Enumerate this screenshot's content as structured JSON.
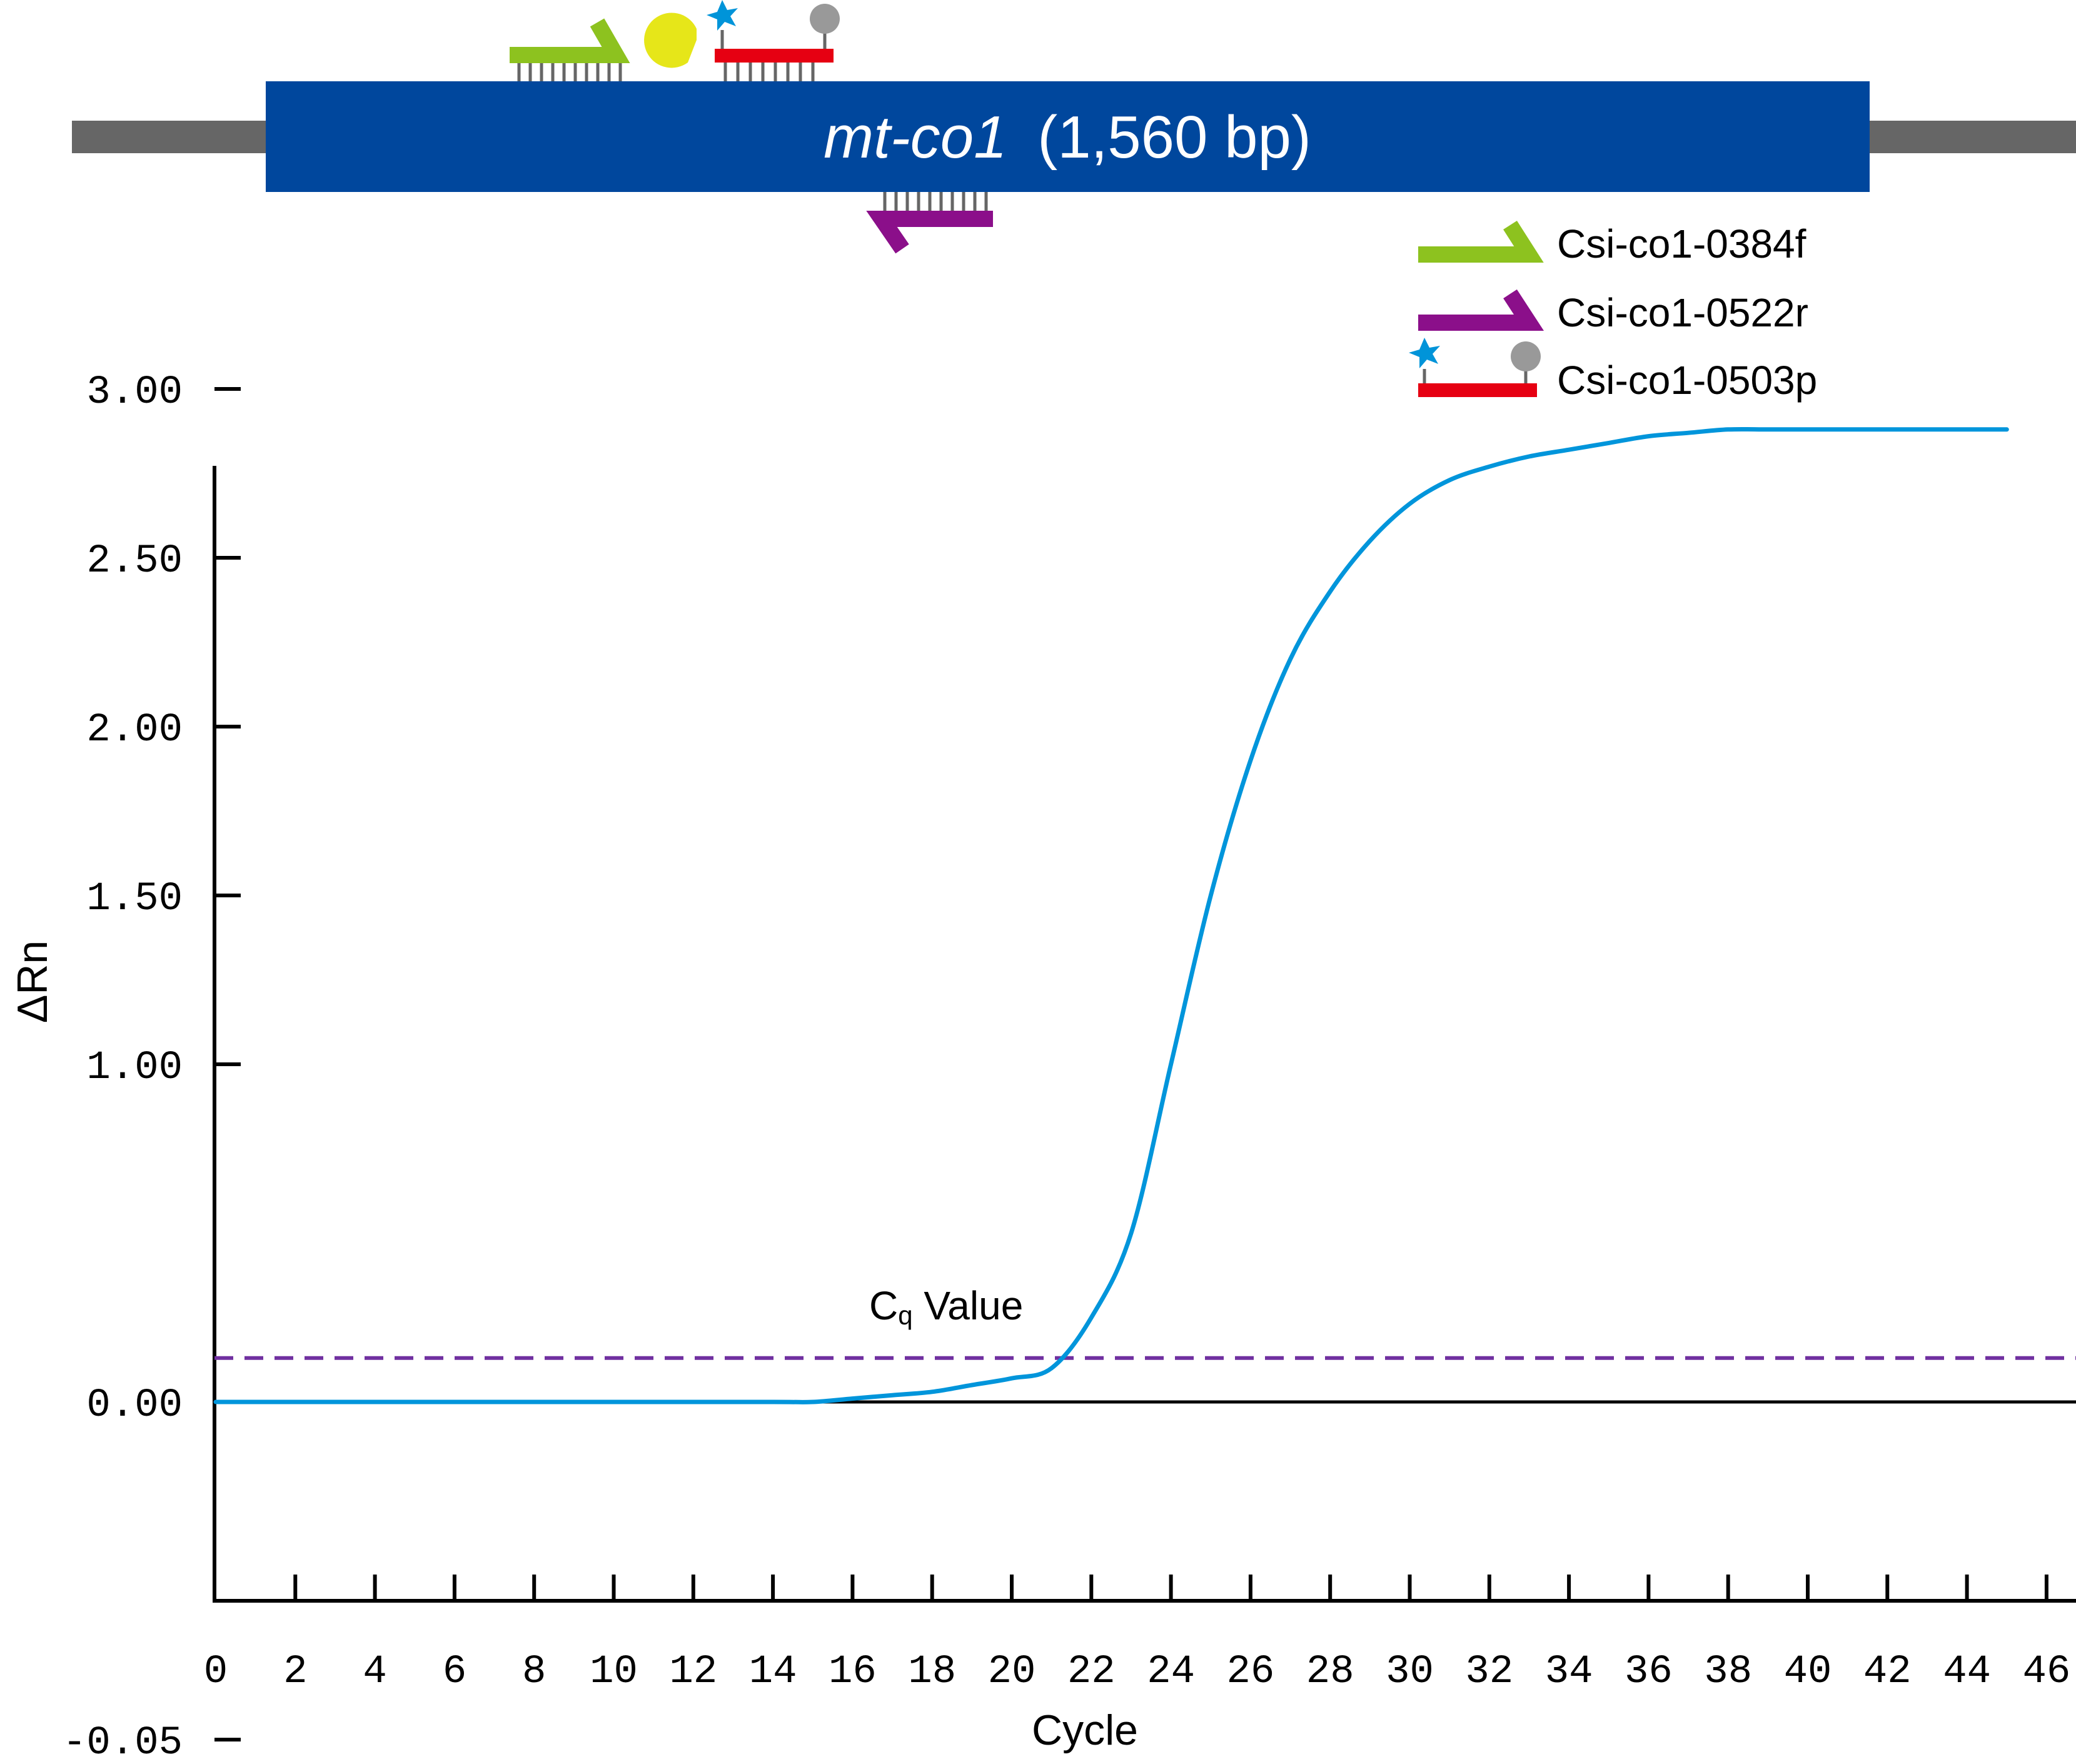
{
  "diagram": {
    "gene_name": "mt-co1",
    "gene_length": "(1,560 bp)",
    "legend": [
      {
        "label": "Csi-co1-0384f",
        "color": "#8dc21f",
        "kind": "forward-primer"
      },
      {
        "label": "Csi-co1-0522r",
        "color": "#8b0f8a",
        "kind": "reverse-primer"
      },
      {
        "label": "Csi-co1-0503p",
        "color": "#e60012",
        "kind": "probe"
      }
    ],
    "colors": {
      "gene": "#00479d",
      "flank": "#666666",
      "reporter": "#0094d9",
      "quencher": "#999999",
      "polymerase": "#e6e619"
    }
  },
  "chart_data": {
    "type": "line",
    "xlabel": "Cycle",
    "ylabel": "ΔRn",
    "x_ticks": [
      0,
      2,
      4,
      6,
      8,
      10,
      12,
      14,
      16,
      18,
      20,
      22,
      24,
      26,
      28,
      30,
      32,
      34,
      36,
      38,
      40,
      42,
      44,
      46
    ],
    "y_ticks": [
      "3.00",
      "2.50",
      "2.00",
      "1.50",
      "1.00",
      "0.00",
      "-0.05"
    ],
    "series": [
      {
        "color": "#0095db",
        "x": [
          0,
          5,
          10,
          14,
          15,
          16,
          17,
          18,
          19,
          20,
          21,
          22,
          23,
          24,
          25,
          26,
          27,
          28,
          29,
          30,
          31,
          32,
          33,
          34,
          35,
          36,
          37,
          38,
          39,
          40,
          41,
          42,
          43,
          44,
          45
        ],
        "y": [
          0.0,
          0.0,
          0.0,
          0.0,
          0.0,
          0.01,
          0.02,
          0.03,
          0.05,
          0.07,
          0.1,
          0.25,
          0.5,
          1.0,
          1.5,
          1.9,
          2.2,
          2.4,
          2.55,
          2.66,
          2.73,
          2.77,
          2.8,
          2.82,
          2.84,
          2.86,
          2.87,
          2.88,
          2.88,
          2.88,
          2.88,
          2.88,
          2.88,
          2.88,
          2.88
        ]
      }
    ],
    "threshold": {
      "y": 0.13,
      "color": "#7030a0",
      "style": "dashed"
    },
    "annotation": {
      "text_main": "C",
      "text_sub": "q",
      "text_rest": " Value"
    }
  }
}
